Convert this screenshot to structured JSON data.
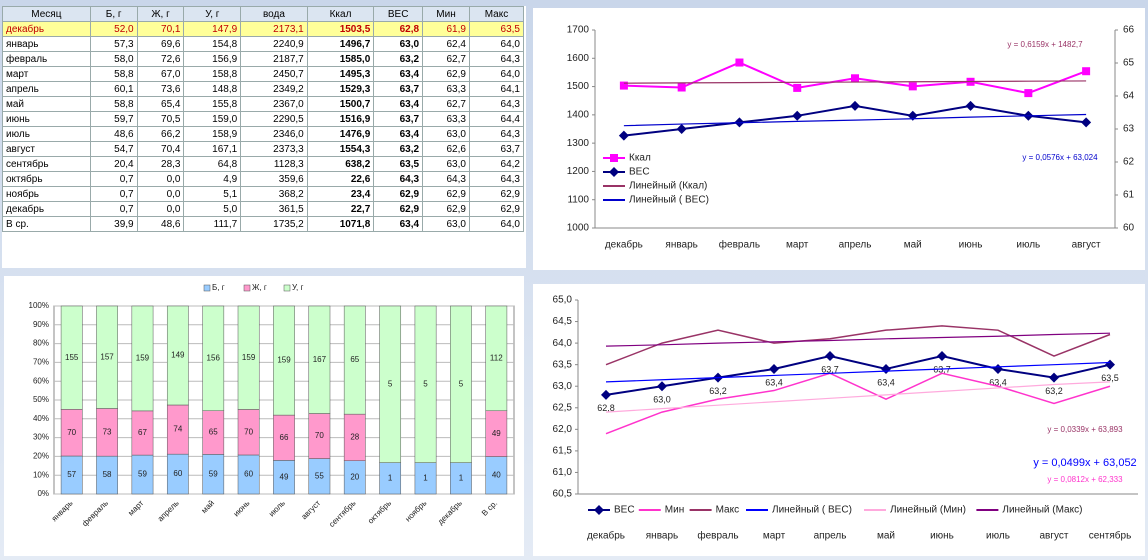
{
  "table": {
    "header": [
      "Месяц",
      "Б, г",
      "Ж, г",
      "У, г",
      "вода",
      "Ккал",
      "ВЕС",
      "Мин",
      "Макс"
    ],
    "rows": [
      [
        "декабрь",
        "52,0",
        "70,1",
        "147,9",
        "2173,1",
        "1503,5",
        "62,8",
        "61,9",
        "63,5"
      ],
      [
        "январь",
        "57,3",
        "69,6",
        "154,8",
        "2240,9",
        "1496,7",
        "63,0",
        "62,4",
        "64,0"
      ],
      [
        "февраль",
        "58,0",
        "72,6",
        "156,9",
        "2187,7",
        "1585,0",
        "63,2",
        "62,7",
        "64,3"
      ],
      [
        "март",
        "58,8",
        "67,0",
        "158,8",
        "2450,7",
        "1495,3",
        "63,4",
        "62,9",
        "64,0"
      ],
      [
        "апрель",
        "60,1",
        "73,6",
        "148,8",
        "2349,2",
        "1529,3",
        "63,7",
        "63,3",
        "64,1"
      ],
      [
        "май",
        "58,8",
        "65,4",
        "155,8",
        "2367,0",
        "1500,7",
        "63,4",
        "62,7",
        "64,3"
      ],
      [
        "июнь",
        "59,7",
        "70,5",
        "159,0",
        "2290,5",
        "1516,9",
        "63,7",
        "63,3",
        "64,4"
      ],
      [
        "июль",
        "48,6",
        "66,2",
        "158,9",
        "2346,0",
        "1476,9",
        "63,4",
        "63,0",
        "64,3"
      ],
      [
        "август",
        "54,7",
        "70,4",
        "167,1",
        "2373,3",
        "1554,3",
        "63,2",
        "62,6",
        "63,7"
      ],
      [
        "сентябрь",
        "20,4",
        "28,3",
        "64,8",
        "1128,3",
        "638,2",
        "63,5",
        "63,0",
        "64,2"
      ],
      [
        "октябрь",
        "0,7",
        "0,0",
        "4,9",
        "359,6",
        "22,6",
        "64,3",
        "64,3",
        "64,3"
      ],
      [
        "ноябрь",
        "0,7",
        "0,0",
        "5,1",
        "368,2",
        "23,4",
        "62,9",
        "62,9",
        "62,9"
      ],
      [
        "декабрь",
        "0,7",
        "0,0",
        "5,0",
        "361,5",
        "22,7",
        "62,9",
        "62,9",
        "62,9"
      ],
      [
        "В ср.",
        "39,9",
        "48,6",
        "111,7",
        "1735,2",
        "1071,8",
        "63,4",
        "63,0",
        "64,0"
      ]
    ]
  },
  "chart_data": [
    {
      "type": "line",
      "categories": [
        "декабрь",
        "январь",
        "февраль",
        "март",
        "апрель",
        "май",
        "июнь",
        "июль",
        "август"
      ],
      "ylim": [
        1000,
        1700
      ],
      "yticks": [
        1000,
        1100,
        1200,
        1300,
        1400,
        1500,
        1600,
        1700
      ],
      "y2lim": [
        60,
        66
      ],
      "y2ticks": [
        60,
        61,
        62,
        63,
        64,
        65,
        66
      ],
      "grid": false,
      "legend": "lower left",
      "series": [
        {
          "name": "Ккал",
          "color": "#ff00ff",
          "marker": "square",
          "values": [
            1503.5,
            1496.7,
            1585.0,
            1495.3,
            1529.3,
            1500.7,
            1516.9,
            1476.9,
            1554.3
          ]
        },
        {
          "name": "ВЕС",
          "color": "#000080",
          "marker": "diamond",
          "axis": "y2",
          "values": [
            62.8,
            63.0,
            63.2,
            63.4,
            63.7,
            63.4,
            63.7,
            63.4,
            63.2
          ]
        },
        {
          "name": "Линейный (Ккал)",
          "color": "#993366",
          "marker": "none",
          "values": [
            1512,
            1513,
            1514,
            1515,
            1516,
            1517,
            1518,
            1519,
            1520
          ]
        },
        {
          "name": "Линейный ( ВЕС)",
          "color": "#0000cc",
          "marker": "none",
          "axis": "y2",
          "values": [
            63.1,
            63.15,
            63.19,
            63.23,
            63.27,
            63.31,
            63.36,
            63.4,
            63.44
          ]
        }
      ],
      "annotations": [
        {
          "text": "y = 0,6159x + 1482,7",
          "color": "#993366"
        },
        {
          "text": "y = 0,0576x + 63,024",
          "color": "#0000cc"
        }
      ]
    },
    {
      "type": "stacked_percent_bar",
      "categories": [
        "январь",
        "февраль",
        "март",
        "апрель",
        "май",
        "июнь",
        "июль",
        "август",
        "сентябрь",
        "октябрь",
        "ноябрь",
        "декабрь",
        "В ср."
      ],
      "ylim": [
        0,
        100
      ],
      "yticks": [
        {
          "value": 0,
          "label": "0%"
        },
        {
          "value": 10,
          "label": "10%"
        },
        {
          "value": 20,
          "label": "20%"
        },
        {
          "value": 30,
          "label": "30%"
        },
        {
          "value": 40,
          "label": "40%"
        },
        {
          "value": 50,
          "label": "50%"
        },
        {
          "value": 60,
          "label": "60%"
        },
        {
          "value": 70,
          "label": "70%"
        },
        {
          "value": 80,
          "label": "80%"
        },
        {
          "value": 90,
          "label": "90%"
        },
        {
          "value": 100,
          "label": "100%"
        }
      ],
      "grid": true,
      "legend": "top",
      "series": [
        {
          "name": "Б, г",
          "color": "#99ccff",
          "values": [
            57,
            58,
            59,
            60,
            59,
            60,
            49,
            55,
            20,
            1,
            1,
            1,
            40
          ]
        },
        {
          "name": "Ж, г",
          "color": "#ff99cc",
          "values": [
            70,
            73,
            67,
            74,
            65,
            70,
            66,
            70,
            28,
            0,
            0,
            0,
            49
          ]
        },
        {
          "name": "У, г",
          "color": "#ccffcc",
          "values": [
            155,
            157,
            159,
            149,
            156,
            159,
            159,
            167,
            65,
            5,
            5,
            5,
            112
          ]
        }
      ]
    },
    {
      "type": "line",
      "categories": [
        "декабрь",
        "январь",
        "февраль",
        "март",
        "апрель",
        "май",
        "июнь",
        "июль",
        "август",
        "сентябрь"
      ],
      "ylim": [
        60.5,
        65
      ],
      "yticks": [
        {
          "value": 60.5,
          "label": "60,5"
        },
        {
          "value": 61,
          "label": "61,0"
        },
        {
          "value": 61.5,
          "label": "61,5"
        },
        {
          "value": 62,
          "label": "62,0"
        },
        {
          "value": 62.5,
          "label": "62,5"
        },
        {
          "value": 63,
          "label": "63,0"
        },
        {
          "value": 63.5,
          "label": "63,5"
        },
        {
          "value": 64,
          "label": "64,0"
        },
        {
          "value": 64.5,
          "label": "64,5"
        },
        {
          "value": 65,
          "label": "65,0"
        }
      ],
      "grid": false,
      "legend": "bottom",
      "series": [
        {
          "name": "ВЕС",
          "color": "#000080",
          "marker": "diamond",
          "values": [
            62.8,
            63.0,
            63.2,
            63.4,
            63.7,
            63.4,
            63.7,
            63.4,
            63.2,
            63.5
          ],
          "value_labels": [
            "62,8",
            "63,0",
            "63,2",
            "63,4",
            "63,7",
            "63,4",
            "63,7",
            "63,4",
            "63,2",
            "63,5"
          ]
        },
        {
          "name": "Мин",
          "color": "#ff33cc",
          "marker": "none",
          "values": [
            61.9,
            62.4,
            62.7,
            62.9,
            63.3,
            62.7,
            63.3,
            63.0,
            62.6,
            63.0
          ]
        },
        {
          "name": "Макс",
          "color": "#993366",
          "marker": "none",
          "values": [
            63.5,
            64.0,
            64.3,
            64.0,
            64.1,
            64.3,
            64.4,
            64.3,
            63.7,
            64.2
          ]
        },
        {
          "name": "Линейный ( ВЕС)",
          "color": "#0000ff",
          "marker": "none",
          "values": [
            63.1,
            63.15,
            63.2,
            63.25,
            63.3,
            63.35,
            63.4,
            63.45,
            63.5,
            63.55
          ]
        },
        {
          "name": "Линейный (Мин)",
          "color": "#ffaadd",
          "marker": "none",
          "values": [
            62.4,
            62.48,
            62.56,
            62.64,
            62.72,
            62.8,
            62.88,
            62.96,
            63.04,
            63.1
          ]
        },
        {
          "name": "Линейный (Макс)",
          "color": "#800080",
          "marker": "none",
          "values": [
            63.93,
            63.96,
            64.0,
            64.03,
            64.06,
            64.1,
            64.13,
            64.16,
            64.2,
            64.23
          ]
        }
      ],
      "annotations": [
        {
          "text": "y = 0,0339x + 63,893",
          "color": "#993366"
        },
        {
          "text": "y = 0,0499x + 63,052",
          "color": "#0000ff"
        },
        {
          "text": "y = 0,0812x + 62,333",
          "color": "#ff33cc"
        }
      ]
    }
  ]
}
